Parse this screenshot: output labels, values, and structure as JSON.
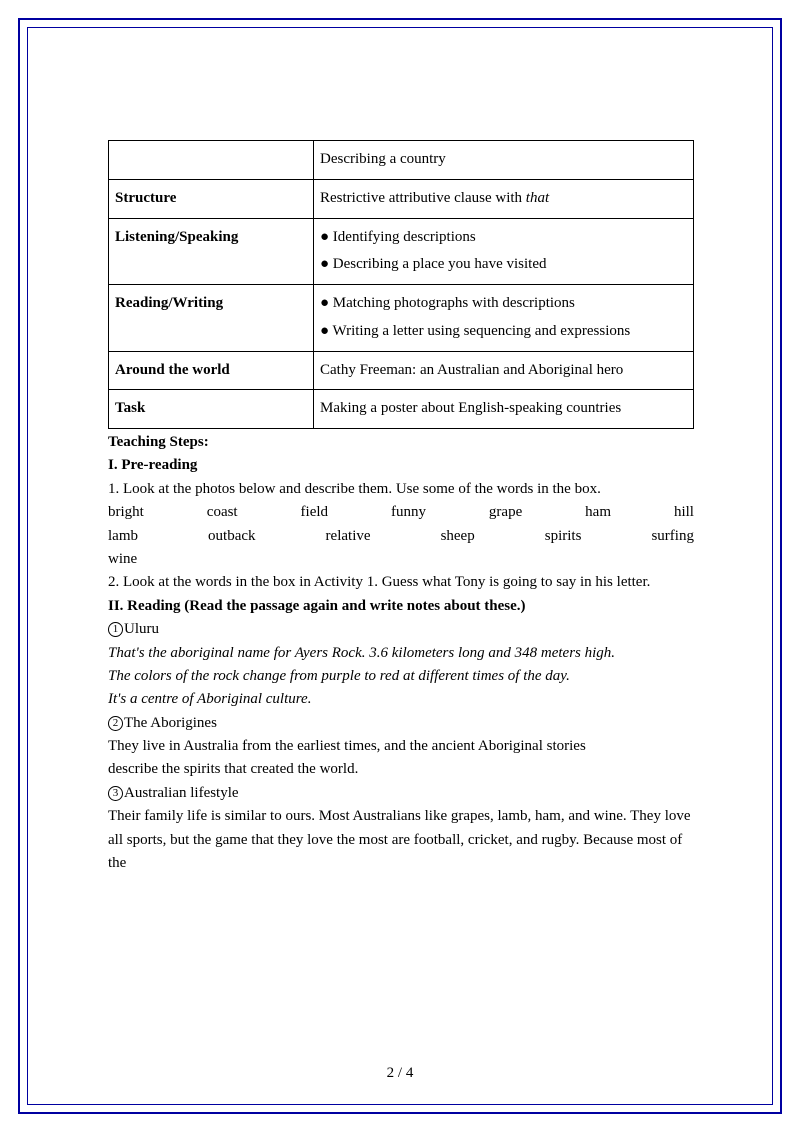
{
  "table": {
    "r0_right": "Describing a country",
    "r1_left": "Structure",
    "r1_right_a": "Restrictive attributive clause with ",
    "r1_right_b": "that",
    "r2_left": "Listening/Speaking",
    "r2_right_a": "● Identifying descriptions",
    "r2_right_b": "● Describing a place you have visited",
    "r3_left": "Reading/Writing",
    "r3_right_a": "● Matching photographs with descriptions",
    "r3_right_b": "● Writing a letter using sequencing and expressions",
    "r4_left": "Around the world",
    "r4_right": "Cathy Freeman: an Australian and Aboriginal hero",
    "r5_left": "Task",
    "r5_right": "Making a poster about English-speaking countries"
  },
  "teaching_steps": "Teaching Steps:",
  "pre_reading_hdr": "I. Pre-reading",
  "pre1": "1. Look at the photos below and describe them. Use some of the words in the box.",
  "words1": [
    "bright",
    "coast",
    "field",
    "funny",
    "grape",
    "ham",
    "hill"
  ],
  "words2": [
    "lamb",
    "outback",
    "relative",
    "sheep",
    "spirits",
    "surfing"
  ],
  "words3": "wine",
  "pre2": "2. Look at the words in the box in Activity 1. Guess what Tony is going to say in his letter.",
  "reading_hdr": "II. Reading  (Read the passage again and write notes about these.)",
  "n1": "1",
  "n1_label": "Uluru",
  "n1_it1": "That's the aboriginal name for Ayers Rock. 3.6 kilometers long and 348 meters high.",
  "n1_it2": "The colors of the rock change from purple to red at different times of the day.",
  "n1_it3": "It's a centre of Aboriginal culture.",
  "n2": "2",
  "n2_label": "The Aborigines",
  "n2_t1": "They live in Australia from the earliest times, and the ancient Aboriginal stories",
  "n2_t2": "describe the spirits that created the world.",
  "n3": "3",
  "n3_label": "Australian lifestyle",
  "n3_t": "Their family life is similar to ours. Most Australians like grapes, lamb, ham, and wine. They love all sports, but the game that they love the most are football, cricket, and rugby. Because most of the",
  "page_num": "2 / 4"
}
